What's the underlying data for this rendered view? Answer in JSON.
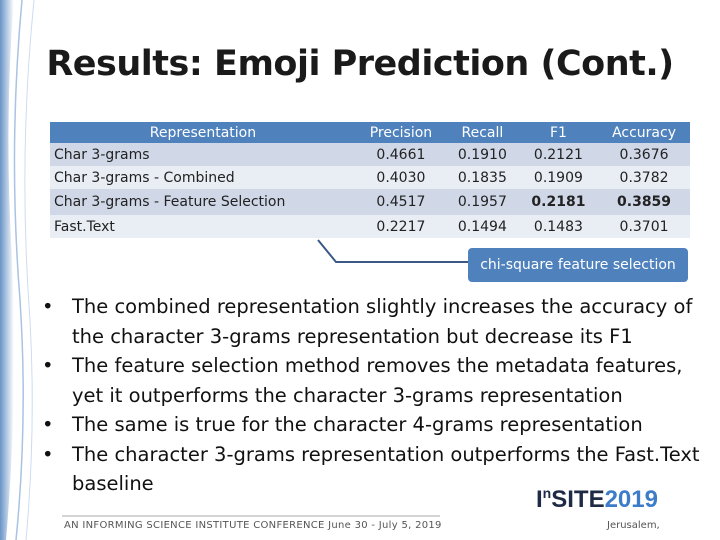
{
  "title": "Results: Emoji Prediction (Cont.)",
  "table": {
    "header": [
      "Representation",
      "Precision",
      "Recall",
      "F1",
      "Accuracy"
    ],
    "rows": [
      [
        "Char 3-grams",
        "0.4661",
        "0.1910",
        "0.2121",
        "0.3676"
      ],
      [
        "Char 3-grams - Combined",
        "0.4030",
        "0.1835",
        "0.1909",
        "0.3782"
      ],
      [
        "Char 3-grams - Feature Selection",
        "0.4517",
        "0.1957",
        "0.2181",
        "0.3859"
      ],
      [
        "Fast.Text",
        "0.2217",
        "0.1494",
        "0.1483",
        "0.3701"
      ]
    ]
  },
  "callout": "chi-square feature selection",
  "bullets": [
    "The combined representation slightly increases the accuracy of the character 3-grams representation but decrease its F1",
    "The feature selection method removes the metadata features, yet it outperforms the character 3-grams representation",
    "The same is true for the character 4-grams representation",
    "The character 3-grams representation outperforms the Fast.Text baseline"
  ],
  "logo": [
    "I",
    "n",
    "SITE",
    "2019"
  ],
  "footer": "AN INFORMING SCIENCE INSTITUTE CONFERENCE June 30 - July 5, 2019",
  "location": "Jerusalem,"
}
